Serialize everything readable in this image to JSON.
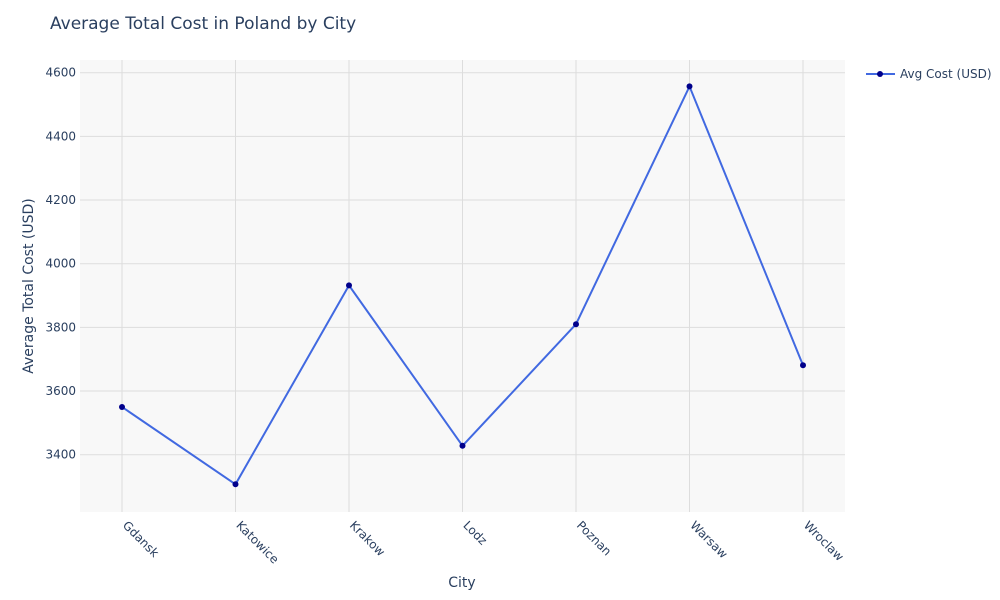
{
  "chart_data": {
    "type": "line",
    "title": "Average Total Cost in Poland by City",
    "xlabel": "City",
    "ylabel": "Average Total Cost (USD)",
    "categories": [
      "Gdansk",
      "Katowice",
      "Krakow",
      "Lodz",
      "Poznan",
      "Warsaw",
      "Wroclaw"
    ],
    "series": [
      {
        "name": "Avg Cost (USD)",
        "values": [
          3550,
          3307,
          3932,
          3428,
          3810,
          4557,
          3681
        ]
      }
    ],
    "ylim": [
      3220,
      4640
    ],
    "yticks": [
      3400,
      3600,
      3800,
      4000,
      4200,
      4400,
      4600
    ],
    "grid": true,
    "legend_position": "top-right",
    "colors": {
      "line": "#4169e1",
      "marker": "#00008b",
      "plot_bg": "#f8f8f8",
      "grid": "#dddddd",
      "text": "#2a3f5f"
    }
  }
}
